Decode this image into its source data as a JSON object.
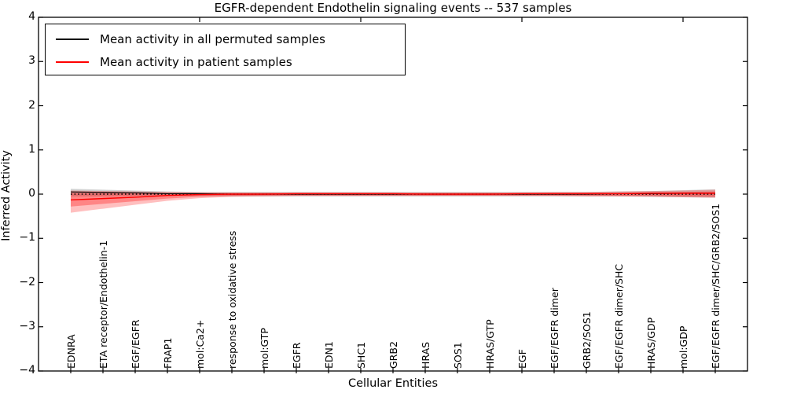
{
  "title": "EGFR-dependent Endothelin signaling events -- 537 samples",
  "chart_data": {
    "type": "line",
    "title": "EGFR-dependent Endothelin signaling events -- 537 samples",
    "xlabel": "Cellular Entities",
    "ylabel": "Inferred Activity",
    "ylim": [
      -4,
      4
    ],
    "xlim": [
      0,
      22
    ],
    "grid": false,
    "legend_position": "upper left",
    "yticks": [
      "4",
      "3",
      "2",
      "1",
      "0",
      "−1",
      "−2",
      "−3",
      "−4"
    ],
    "ytick_values": [
      4,
      3,
      2,
      1,
      0,
      -1,
      -2,
      -3,
      -4
    ],
    "top_axis_ticks": [
      5,
      10,
      15,
      20
    ],
    "categories": [
      "EDNRA",
      "ETA receptor/Endothelin-1",
      "EGF/EGFR",
      "FRAP1",
      "mol:Ca2+",
      "response to oxidative stress",
      "mol:GTP",
      "EGFR",
      "EDN1",
      "SHC1",
      "GRB2",
      "HRAS",
      "SOS1",
      "HRAS/GTP",
      "EGF",
      "EGF/EGFR dimer",
      "GRB2/SOS1",
      "EGF/EGFR dimer/SHC",
      "HRAS/GDP",
      "mol:GDP",
      "EGF/EGFR dimer/SHC/GRB2/SOS1"
    ],
    "legend": [
      {
        "label": "Mean activity in all permuted samples",
        "color": "#000000"
      },
      {
        "label": "Mean activity in patient samples",
        "color": "#ff0000"
      }
    ],
    "series": [
      {
        "name": "Mean activity in all permuted samples",
        "color": "#000000",
        "values": [
          0.05,
          0.04,
          0.03,
          0.01,
          0.01,
          0.0,
          0.0,
          0.0,
          0.0,
          0.0,
          0.0,
          0.0,
          0.0,
          0.0,
          0.0,
          0.0,
          0.0,
          0.01,
          0.01,
          0.02,
          0.02
        ]
      },
      {
        "name": "Mean activity in patient samples",
        "color": "#ff0000",
        "values": [
          -0.13,
          -0.1,
          -0.07,
          -0.03,
          -0.01,
          0.0,
          0.0,
          0.01,
          0.01,
          0.01,
          0.01,
          0.0,
          0.0,
          0.0,
          0.01,
          0.01,
          0.01,
          0.01,
          0.02,
          0.02,
          0.02
        ]
      }
    ],
    "bands": [
      {
        "name": "permuted-range",
        "color": "rgba(120,120,120,0.35)",
        "upper": [
          0.12,
          0.1,
          0.08,
          0.06,
          0.05,
          0.05,
          0.05,
          0.05,
          0.05,
          0.05,
          0.05,
          0.05,
          0.05,
          0.05,
          0.05,
          0.05,
          0.05,
          0.06,
          0.07,
          0.09,
          0.11
        ],
        "lower": [
          -0.05,
          -0.05,
          -0.04,
          -0.04,
          -0.04,
          -0.05,
          -0.05,
          -0.05,
          -0.05,
          -0.05,
          -0.05,
          -0.05,
          -0.05,
          -0.05,
          -0.05,
          -0.05,
          -0.05,
          -0.05,
          -0.06,
          -0.07,
          -0.08
        ]
      },
      {
        "name": "patient-range-outer",
        "color": "rgba(255,0,0,0.25)",
        "upper": [
          0.08,
          0.07,
          0.06,
          0.05,
          0.04,
          0.04,
          0.04,
          0.04,
          0.04,
          0.04,
          0.04,
          0.04,
          0.04,
          0.04,
          0.04,
          0.05,
          0.05,
          0.06,
          0.07,
          0.08,
          0.1
        ],
        "lower": [
          -0.42,
          -0.33,
          -0.24,
          -0.15,
          -0.09,
          -0.06,
          -0.05,
          -0.04,
          -0.04,
          -0.04,
          -0.04,
          -0.04,
          -0.04,
          -0.04,
          -0.04,
          -0.04,
          -0.05,
          -0.05,
          -0.06,
          -0.07,
          -0.08
        ]
      },
      {
        "name": "patient-range-inner",
        "color": "rgba(255,0,0,0.3)",
        "upper": [
          0.03,
          0.03,
          0.02,
          0.02,
          0.02,
          0.02,
          0.02,
          0.02,
          0.02,
          0.02,
          0.02,
          0.02,
          0.02,
          0.02,
          0.02,
          0.02,
          0.03,
          0.03,
          0.04,
          0.05,
          0.06
        ],
        "lower": [
          -0.28,
          -0.22,
          -0.16,
          -0.1,
          -0.06,
          -0.04,
          -0.03,
          -0.03,
          -0.03,
          -0.03,
          -0.03,
          -0.03,
          -0.03,
          -0.03,
          -0.03,
          -0.03,
          -0.03,
          -0.04,
          -0.04,
          -0.05,
          -0.06
        ]
      }
    ],
    "zero_line": {
      "value": 0,
      "style": "dotted",
      "color": "#000000"
    }
  }
}
